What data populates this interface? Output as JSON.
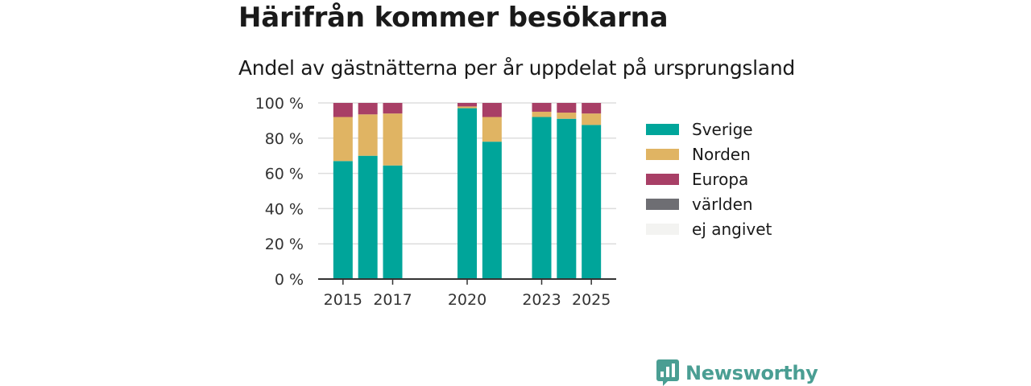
{
  "header": {
    "title": "Härifrån kommer besökarna",
    "subtitle": "Andel av gästnätterna per år uppdelat på ursprungsland"
  },
  "brand": {
    "name": "Newsworthy",
    "icon": "newsworthy-logo-icon",
    "color": "#4a9e93"
  },
  "chart_data": {
    "type": "bar",
    "stacked": true,
    "title": "",
    "xlabel": "",
    "ylabel": "",
    "ylim": [
      0,
      100
    ],
    "y_ticks": [
      "0 %",
      "20 %",
      "40 %",
      "60 %",
      "80 %",
      "100 %"
    ],
    "y_tick_values": [
      0,
      20,
      40,
      60,
      80,
      100
    ],
    "x_tick_labels": [
      "2015",
      "2017",
      "2020",
      "2023",
      "2025"
    ],
    "categories": [
      2015,
      2016,
      2017,
      2020,
      2021,
      2023,
      2024,
      2025
    ],
    "x_range": [
      2014,
      2026
    ],
    "grid": true,
    "legend_position": "right",
    "series": [
      {
        "name": "Sverige",
        "color": "#00a59a",
        "values": [
          67,
          70,
          64.5,
          97,
          78,
          92,
          91,
          87.5
        ]
      },
      {
        "name": "Norden",
        "color": "#e0b463",
        "values": [
          25,
          23.5,
          29.5,
          1,
          14,
          3,
          3.5,
          6.5
        ]
      },
      {
        "name": "Europa",
        "color": "#a83f66",
        "values": [
          8,
          6.5,
          6,
          2,
          8,
          5,
          5.5,
          6
        ]
      },
      {
        "name": "världen",
        "color": "#6e6e73",
        "values": [
          0,
          0,
          0,
          0,
          0,
          0,
          0,
          0
        ]
      },
      {
        "name": "ej angivet",
        "color": "#f3f3f1",
        "values": [
          0,
          0,
          0,
          0,
          0,
          0,
          0,
          0
        ]
      }
    ]
  }
}
